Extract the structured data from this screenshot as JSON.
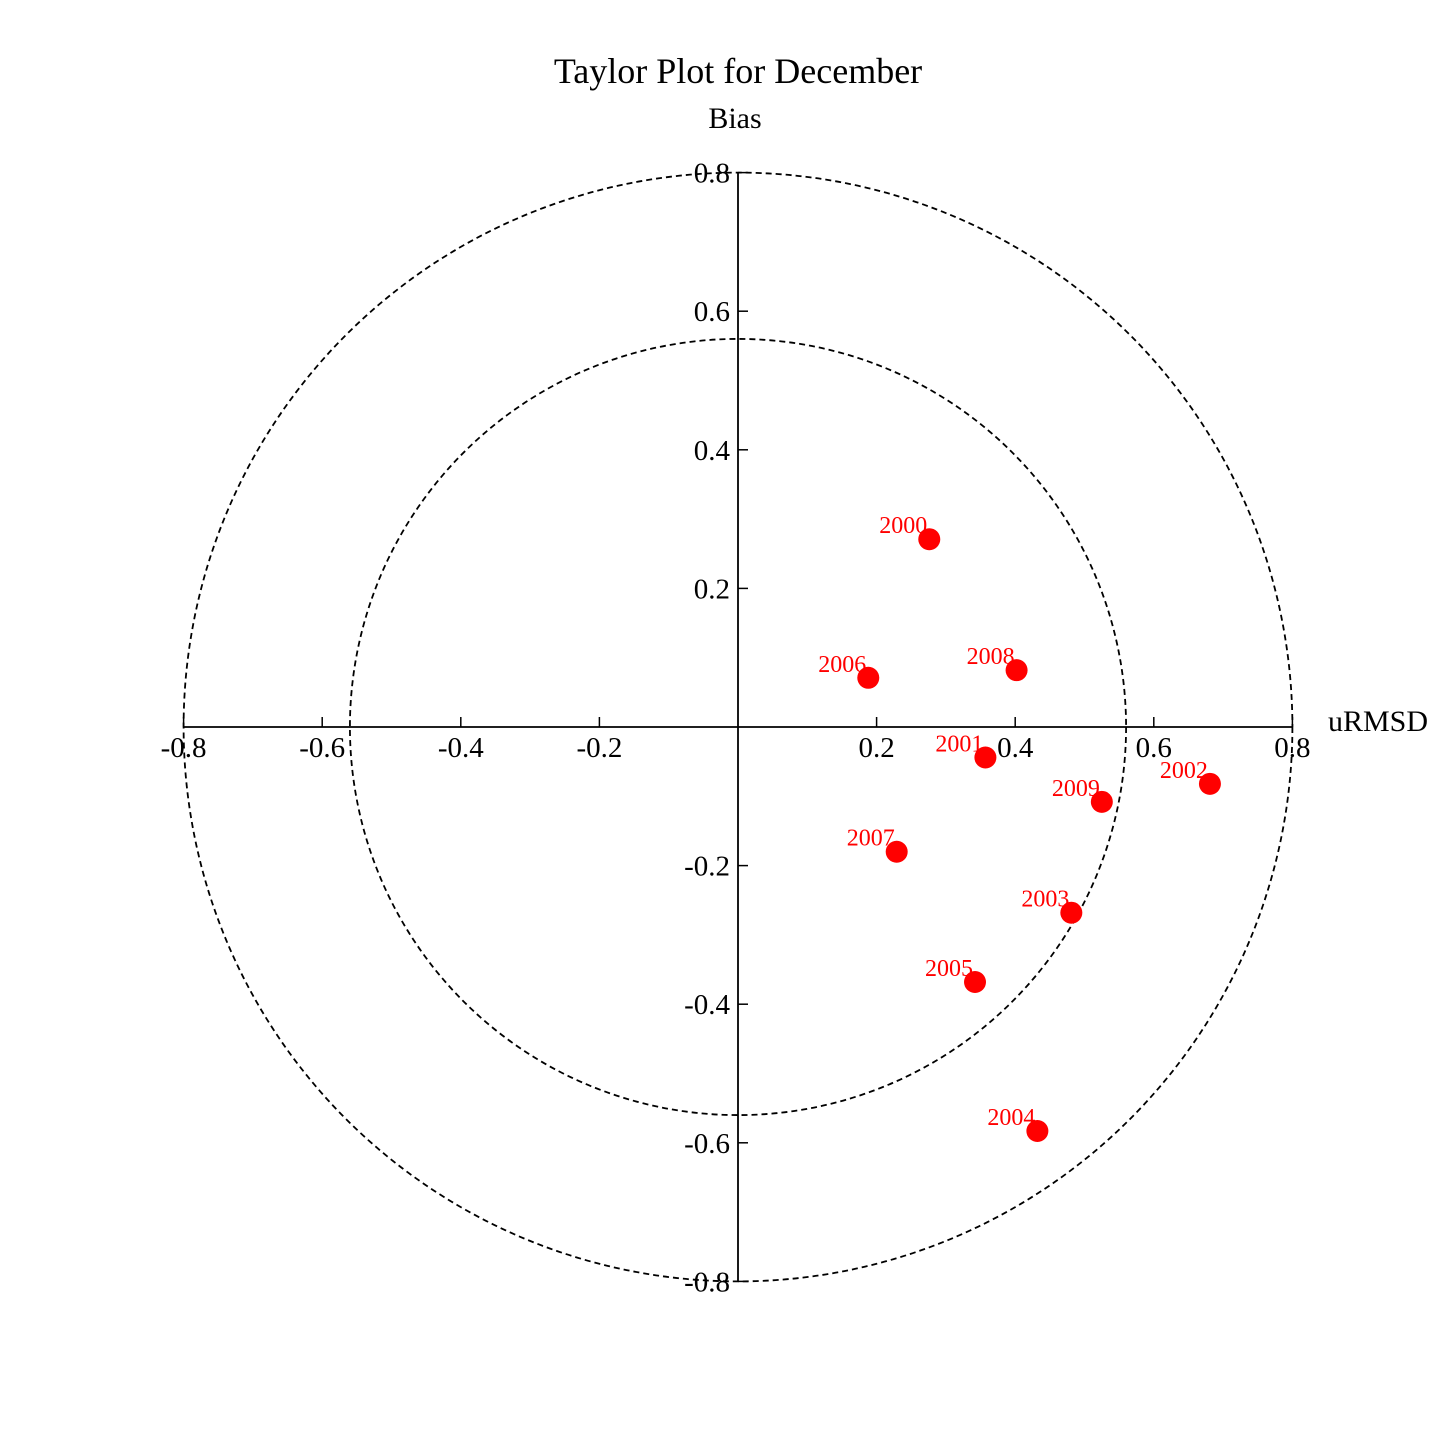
{
  "chart_data": {
    "type": "scatter",
    "title": "Taylor Plot for December",
    "xlabel": "uRMSD",
    "ylabel": "Bias",
    "xlim": [
      -0.8,
      0.8
    ],
    "ylim": [
      -0.8,
      0.8
    ],
    "x_ticks": [
      -0.8,
      -0.6,
      -0.4,
      -0.2,
      0.2,
      0.4,
      0.6,
      0.8
    ],
    "x_tick_labels": [
      "-0.8",
      "-0.6",
      "-0.4",
      "-0.2",
      "0.2",
      "0.4",
      "0.6",
      "0.8"
    ],
    "y_ticks": [
      0.8,
      0.6,
      0.4,
      0.2,
      -0.2,
      -0.4,
      -0.6,
      -0.8
    ],
    "y_tick_labels": [
      "0.8",
      "0.6",
      "0.4",
      "0.2",
      "-0.2",
      "-0.4",
      "-0.6",
      "-0.8"
    ],
    "reference_circles": [
      0.8,
      0.56
    ],
    "grid": false,
    "marker_color": "#ff0000",
    "points": [
      {
        "label": "2000",
        "x": 0.276,
        "y": 0.271
      },
      {
        "label": "2001",
        "x": 0.357,
        "y": -0.044
      },
      {
        "label": "2002",
        "x": 0.681,
        "y": -0.082
      },
      {
        "label": "2003",
        "x": 0.481,
        "y": -0.268
      },
      {
        "label": "2004",
        "x": 0.432,
        "y": -0.583
      },
      {
        "label": "2005",
        "x": 0.342,
        "y": -0.368
      },
      {
        "label": "2006",
        "x": 0.188,
        "y": 0.071
      },
      {
        "label": "2007",
        "x": 0.229,
        "y": -0.18
      },
      {
        "label": "2008",
        "x": 0.402,
        "y": 0.082
      },
      {
        "label": "2009",
        "x": 0.525,
        "y": -0.108
      }
    ]
  }
}
